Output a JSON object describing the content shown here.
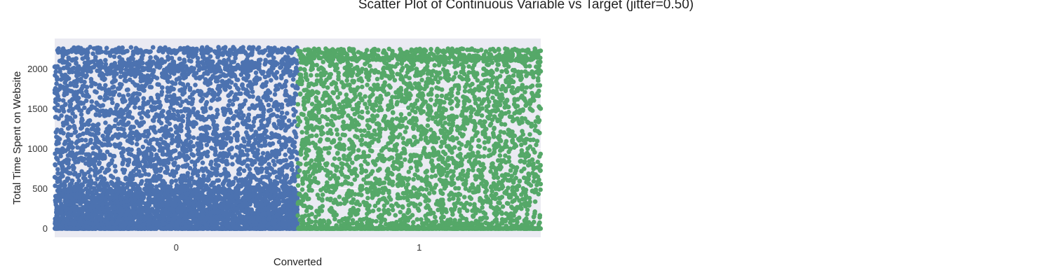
{
  "chart_data": {
    "type": "scatter",
    "title": "Scatter Plot of Continuous Variable vs Target (jitter=0.50)",
    "xlabel": "Converted",
    "ylabel": "Total Time Spent on Website",
    "categories": [
      "0",
      "1"
    ],
    "jitter": 0.5,
    "ylim": [
      -110,
      2380
    ],
    "yticks": [
      0,
      500,
      1000,
      1500,
      2000
    ],
    "grid": true,
    "legend": "none",
    "plot_background": "#EAEAF2",
    "series": [
      {
        "category": "0",
        "color": "#4C72B0",
        "approx_points": 5680,
        "values_sample": [
          0,
          0,
          0,
          0,
          12,
          25,
          40,
          55,
          70,
          90,
          110,
          130,
          150,
          170,
          190,
          210,
          230,
          250,
          275,
          300,
          325,
          350,
          375,
          400,
          425,
          450,
          480,
          510,
          560,
          620,
          700,
          780,
          860,
          940,
          1020,
          1100,
          1180,
          1260,
          1340,
          1420,
          1500,
          1580,
          1660,
          1740,
          1820,
          1900,
          1960,
          2010,
          2060,
          2090,
          2200,
          2220,
          2272
        ]
      },
      {
        "category": "1",
        "color": "#55A868",
        "approx_points": 3560,
        "values_sample": [
          0,
          0,
          0,
          0,
          0,
          0,
          20,
          60,
          120,
          200,
          280,
          360,
          440,
          520,
          600,
          680,
          760,
          840,
          920,
          1000,
          1080,
          1160,
          1240,
          1320,
          1400,
          1480,
          1560,
          1640,
          1720,
          1800,
          1880,
          1960,
          2040,
          2100,
          2130,
          2140,
          2175,
          2220,
          2253
        ]
      }
    ]
  }
}
